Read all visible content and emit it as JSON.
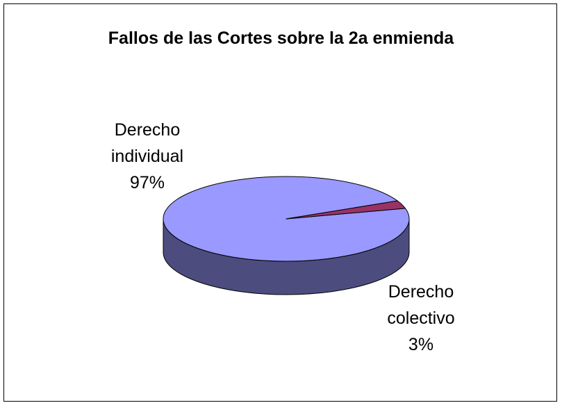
{
  "chart_data": {
    "type": "pie",
    "variant": "3d",
    "title": "Fallos de las Cortes sobre la 2a enmienda",
    "legend": "none",
    "slices": [
      {
        "name": "Derecho individual",
        "label_lines": [
          "Derecho",
          "individual",
          "97%"
        ],
        "value": 97,
        "color": "#9999ff",
        "side_color": "#4c4c7f"
      },
      {
        "name": "Derecho colectivo",
        "label_lines": [
          "Derecho",
          "colectivo",
          "3%"
        ],
        "value": 3,
        "color": "#993366",
        "side_color": "#4c1933"
      }
    ]
  }
}
